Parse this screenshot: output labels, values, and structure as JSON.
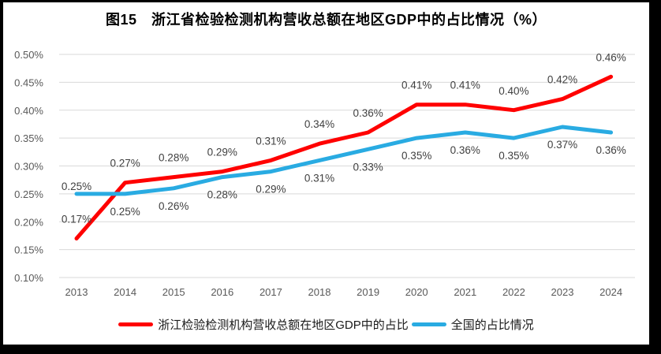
{
  "chart_data": {
    "type": "line",
    "title": "图15　浙江省检验检测机构营收总额在地区GDP中的占比情况（%）",
    "x": [
      "2013",
      "2014",
      "2015",
      "2016",
      "2017",
      "2018",
      "2019",
      "2020",
      "2021",
      "2022",
      "2023",
      "2024"
    ],
    "series": [
      {
        "name": "浙江检验检测机构营收总额在地区GDP中的占比",
        "color": "#FF0000",
        "values": [
          0.17,
          0.27,
          0.28,
          0.29,
          0.31,
          0.34,
          0.36,
          0.41,
          0.41,
          0.4,
          0.42,
          0.46
        ],
        "labels": [
          "0.17%",
          "0.27%",
          "0.28%",
          "0.29%",
          "0.31%",
          "0.34%",
          "0.36%",
          "0.41%",
          "0.41%",
          "0.40%",
          "0.42%",
          "0.46%"
        ],
        "label_position": "above"
      },
      {
        "name": "全国的占比情况",
        "color": "#29ABE2",
        "values": [
          0.25,
          0.25,
          0.26,
          0.28,
          0.29,
          0.31,
          0.33,
          0.35,
          0.36,
          0.35,
          0.37,
          0.36
        ],
        "labels": [
          "0.25%",
          "0.25%",
          "0.26%",
          "0.28%",
          "0.29%",
          "0.31%",
          "0.33%",
          "0.35%",
          "0.36%",
          "0.35%",
          "0.37%",
          "0.36%"
        ],
        "label_position": "below"
      }
    ],
    "ylim": [
      0.1,
      0.5
    ],
    "yticks": [
      "0.50%",
      "0.45%",
      "0.40%",
      "0.35%",
      "0.30%",
      "0.25%",
      "0.20%",
      "0.15%",
      "0.10%"
    ],
    "grid": true,
    "legend_position": "bottom",
    "colors": {
      "gridline": "#D9D9D9",
      "axis_label": "#595959",
      "data_label": "#404040"
    }
  }
}
